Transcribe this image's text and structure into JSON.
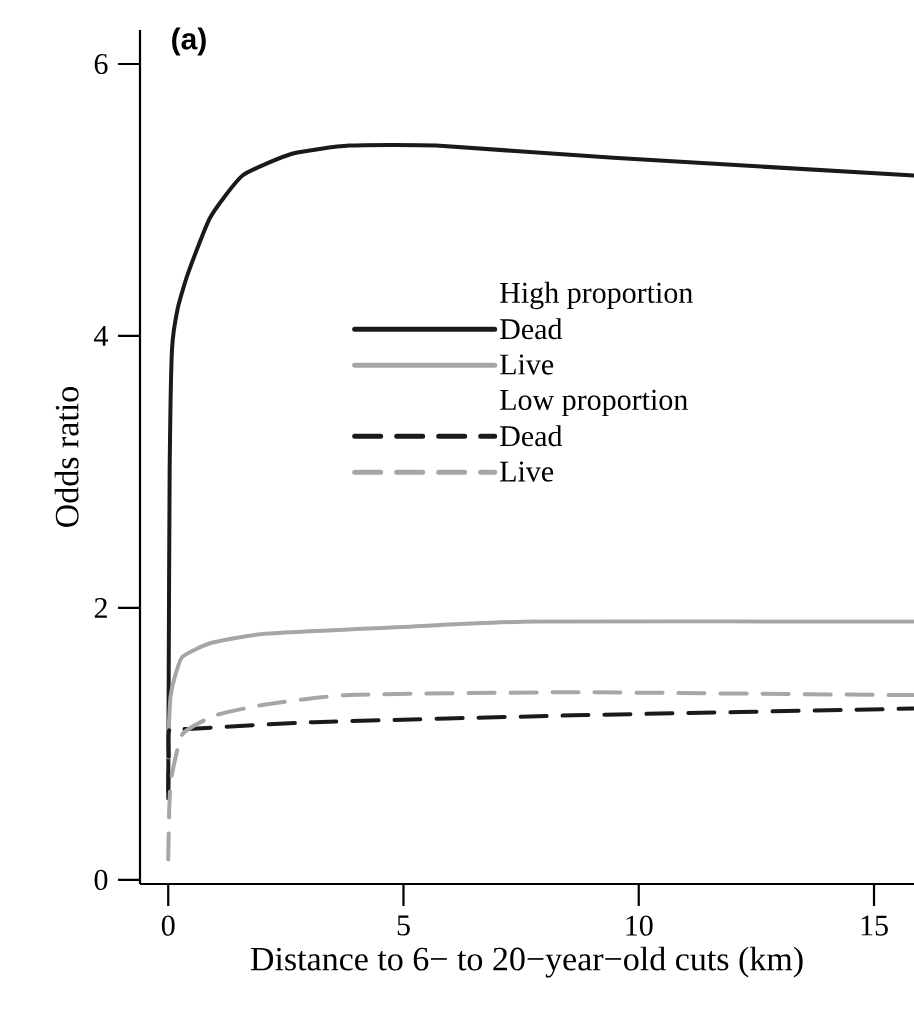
{
  "chart_data": {
    "type": "line",
    "title": "(a)",
    "xlabel": "Distance to 6− to 20−year−old cuts (km)",
    "ylabel": "Odds ratio",
    "annotations": [
      "High  proportion",
      "Low proportion"
    ],
    "xlim": [
      -0.6,
      15.85
    ],
    "ylim": [
      -0.03,
      6.25
    ],
    "xticks": [
      0,
      5,
      10,
      15
    ],
    "yticks": [
      0,
      2,
      4,
      6
    ],
    "grid": false,
    "legend": "top left",
    "marker": "none",
    "series": [
      {
        "name": "Dead",
        "color": "#1a1a1a",
        "line_style": "solid",
        "x": [
          0,
          0.01,
          0.03,
          0.08,
          0.2,
          0.42,
          0.89,
          1.58,
          2.63,
          3.85,
          5.7,
          9.46,
          15.85
        ],
        "values": [
          0.65,
          1.5,
          3.0,
          3.9,
          4.2,
          4.46,
          4.87,
          5.18,
          5.34,
          5.4,
          5.4,
          5.31,
          5.18
        ]
      },
      {
        "name": "Live",
        "color": "#a6a6a6",
        "line_style": "solid",
        "x": [
          0,
          0.01,
          0.05,
          0.13,
          0.3,
          0.89,
          2.06,
          4.97,
          7.78,
          15.85
        ],
        "values": [
          0.9,
          1.1,
          1.35,
          1.48,
          1.64,
          1.74,
          1.81,
          1.86,
          1.9,
          1.9
        ]
      },
      {
        "name": "Dead",
        "color": "#1a1a1a",
        "line_style": "dashed",
        "x": [
          0,
          0.01,
          0.02,
          0.42,
          3.1,
          8.6,
          15.85
        ],
        "values": [
          0.6,
          0.9,
          1.1,
          1.11,
          1.16,
          1.21,
          1.26
        ]
      },
      {
        "name": "Live",
        "color": "#a6a6a6",
        "line_style": "dashed",
        "x": [
          0,
          0.02,
          0.06,
          0.3,
          1.0,
          2.07,
          3.85,
          8.6,
          15.3,
          15.85
        ],
        "values": [
          0.15,
          0.5,
          0.74,
          1.07,
          1.21,
          1.29,
          1.36,
          1.38,
          1.36,
          1.36
        ]
      }
    ]
  }
}
